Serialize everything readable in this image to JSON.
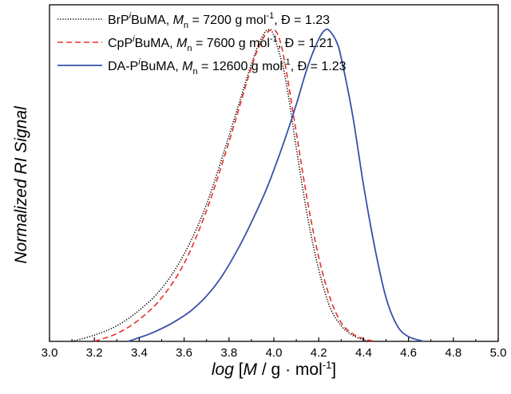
{
  "chart_data": {
    "type": "line",
    "xlabel": "log [M / g · mol-1]",
    "ylabel": "Normalized RI Signal",
    "xlim": [
      3.0,
      5.0
    ],
    "ylim": [
      0,
      1.08
    ],
    "x_ticks": [
      "3.0",
      "3.2",
      "3.4",
      "3.6",
      "3.8",
      "4.0",
      "4.2",
      "4.4",
      "4.6",
      "4.8",
      "5.0"
    ],
    "y_ticks_shown": false,
    "legend_position": "top-left",
    "series": [
      {
        "name": "BrPiBuMA, Mn = 7200 g mol-1, Đ = 1.23",
        "legend": {
          "base": "BrP",
          "sup": "i",
          "rest": "BuMA, ",
          "M": "M",
          "sub": "n",
          "mid": " = 7200 g mol",
          "exp": "-1",
          "tail": ", Đ = 1.23"
        },
        "color": "#000000",
        "style": "dotted",
        "x": [
          3.1,
          3.2,
          3.3,
          3.4,
          3.5,
          3.6,
          3.7,
          3.8,
          3.9,
          3.95,
          3.98,
          4.0,
          4.05,
          4.1,
          4.15,
          4.2,
          4.25,
          4.3,
          4.35,
          4.4,
          4.45
        ],
        "y": [
          0.0,
          0.02,
          0.05,
          0.1,
          0.17,
          0.28,
          0.44,
          0.66,
          0.89,
          0.98,
          1.0,
          0.98,
          0.85,
          0.62,
          0.4,
          0.23,
          0.11,
          0.05,
          0.02,
          0.005,
          0.0
        ]
      },
      {
        "name": "CpPiBuMA, Mn = 7600 g mol-1, Đ = 1.21",
        "legend": {
          "base": "CpP",
          "sup": "i",
          "rest": "BuMA, ",
          "M": "M",
          "sub": "n",
          "mid": " = 7600 g mol",
          "exp": "-1",
          "tail": ", Đ = 1.21"
        },
        "color": "#e8302a",
        "style": "dashed",
        "x": [
          3.2,
          3.3,
          3.4,
          3.5,
          3.6,
          3.7,
          3.8,
          3.9,
          3.95,
          3.99,
          4.02,
          4.05,
          4.1,
          4.15,
          4.2,
          4.25,
          4.3,
          4.35,
          4.4,
          4.45
        ],
        "y": [
          0.0,
          0.025,
          0.07,
          0.14,
          0.25,
          0.42,
          0.64,
          0.88,
          0.97,
          1.0,
          0.98,
          0.89,
          0.67,
          0.45,
          0.27,
          0.14,
          0.06,
          0.025,
          0.008,
          0.0
        ]
      },
      {
        "name": "DA-PiBuMA, Mn = 12600 g mol-1, Đ = 1.23",
        "legend": {
          "base": "DA-P",
          "sup": "i",
          "rest": "BuMA, ",
          "M": "M",
          "sub": "n",
          "mid": " = 12600 g mol",
          "exp": "-1",
          "tail": ", Đ = 1.23"
        },
        "color": "#3a4fa8",
        "style": "solid",
        "x": [
          3.35,
          3.45,
          3.55,
          3.65,
          3.75,
          3.85,
          3.95,
          4.0,
          4.05,
          4.1,
          4.15,
          4.2,
          4.23,
          4.25,
          4.28,
          4.3,
          4.35,
          4.4,
          4.45,
          4.5,
          4.55,
          4.6,
          4.67
        ],
        "y": [
          0.0,
          0.025,
          0.06,
          0.11,
          0.19,
          0.31,
          0.46,
          0.55,
          0.65,
          0.76,
          0.88,
          0.97,
          1.0,
          0.995,
          0.96,
          0.91,
          0.73,
          0.5,
          0.3,
          0.14,
          0.05,
          0.015,
          0.0
        ]
      }
    ]
  }
}
